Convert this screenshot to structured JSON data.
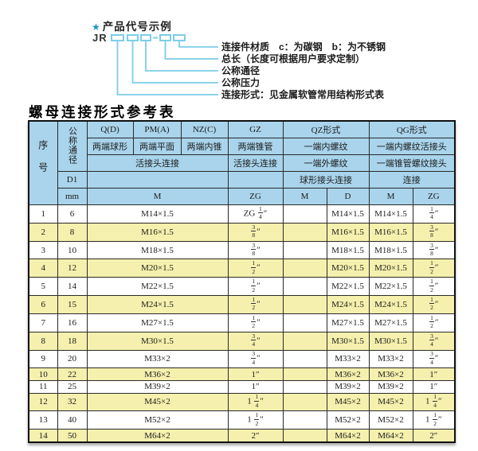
{
  "colors": {
    "header_bg": "#a9d4ec",
    "row_alt_bg": "#f5f0ad",
    "border": "#2a2a2a",
    "diagram_line": "#7ccde8",
    "star_blue": "#1d8fd0",
    "text": "#1c1c1c"
  },
  "diagram": {
    "star_icon": "★",
    "title": "产品代号示例",
    "prefix": "JR",
    "separator": "-",
    "labels": [
      "连接件材质　c：为碳钢　b：为不锈钢",
      "总长（长度可根据用户要求定制）",
      "公称通径",
      "公称压力",
      "连接形式：见金属软管常用结构形式表"
    ]
  },
  "table": {
    "title": "螺母连接形式参考表",
    "header": {
      "seq": "序号",
      "dn": "公称通径",
      "d1": "D1",
      "unit": "mm",
      "q_code": "Q(D)",
      "pm_code": "PM(A)",
      "nz_code": "NZ(C)",
      "gz_code": "GZ",
      "qz_code": "QZ形式",
      "qg_code": "QG形式",
      "q_desc": "两端球形",
      "pm_desc": "两端平面",
      "nz_desc": "两端内锥",
      "gz_desc": "两端锥管",
      "qz_desc": "一端内螺纹",
      "qg_desc": "一端内螺纹活接头",
      "union_conn": "活接头连接",
      "gz_union_conn": "活接头连接",
      "qz_row3": "一端外螺纹",
      "qg_row3": "一端锥管螺纹接头",
      "qz_row4": "球形接头连接",
      "qg_row4": "连接",
      "m_unit": "M",
      "zg_unit": "ZG",
      "qz_m": "M",
      "qz_d": "D",
      "qg_m": "M",
      "qg_zg": "ZG"
    },
    "rows": [
      [
        "1",
        "6",
        "M14×1.5",
        "ZG 1/4″",
        "",
        "M14×1.5",
        "M14×1.5",
        "1/4″"
      ],
      [
        "2",
        "8",
        "M16×1.5",
        "3/8″",
        "",
        "M16×1.5",
        "M16×1.5",
        "3/8″"
      ],
      [
        "3",
        "10",
        "M18×1.5",
        "3/8″",
        "",
        "M18×1.5",
        "M18×1.5",
        "3/8″"
      ],
      [
        "4",
        "12",
        "M20×1.5",
        "1/2″",
        "",
        "M20×1.5",
        "M20×1.5",
        "1/2″"
      ],
      [
        "5",
        "14",
        "M22×1.5",
        "1/2″",
        "",
        "M22×1.5",
        "M22×1.5",
        "1/2″"
      ],
      [
        "6",
        "15",
        "M24×1.5",
        "1/2″",
        "",
        "M24×1.5",
        "M24×1.5",
        "1/2″"
      ],
      [
        "7",
        "16",
        "M27×1.5",
        "1/2″",
        "",
        "M27×1.5",
        "M27×1.5",
        "1/2″"
      ],
      [
        "8",
        "18",
        "M30×1.5",
        "3/4″",
        "",
        "M30×1.5",
        "M30×1.5",
        "3/4″"
      ],
      [
        "9",
        "20",
        "M33×2",
        "3/4″",
        "",
        "M33×2",
        "M33×2",
        "3/4″"
      ],
      [
        "10",
        "22",
        "M36×2",
        "1″",
        "",
        "M36×2",
        "M36×2",
        "1″"
      ],
      [
        "11",
        "25",
        "M39×2",
        "1″",
        "",
        "M39×2",
        "M39×2",
        "1″"
      ],
      [
        "12",
        "32",
        "M45×2",
        "1 1/4″",
        "",
        "M45×2",
        "M45×2",
        "1 1/4″"
      ],
      [
        "13",
        "40",
        "M52×2",
        "1 1/2″",
        "",
        "M52×2",
        "M52×2",
        "1 1/2″"
      ],
      [
        "14",
        "50",
        "M64×2",
        "2″",
        "",
        "M64×2",
        "M64×2",
        "2″"
      ]
    ]
  }
}
